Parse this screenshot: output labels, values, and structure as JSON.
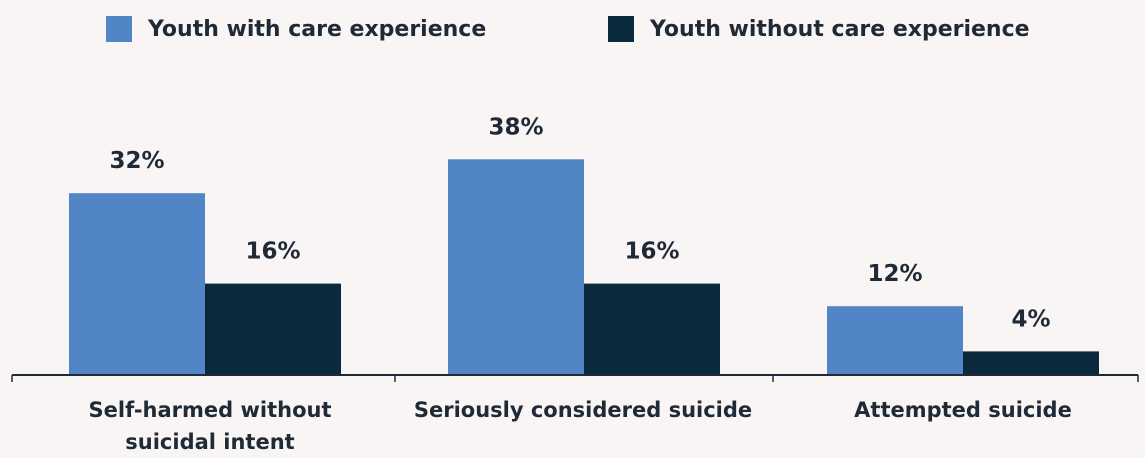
{
  "chart_data": {
    "type": "bar",
    "categories": [
      "Self-harmed without suicidal intent",
      "Seriously considered suicide",
      "Attempted suicide"
    ],
    "series": [
      {
        "name": "Youth with care experience",
        "values": [
          32,
          38,
          12
        ],
        "labels": [
          "32%",
          "38%",
          "12%"
        ],
        "color": "#5285c6"
      },
      {
        "name": "Youth without care experience",
        "values": [
          16,
          16,
          4
        ],
        "labels": [
          "16%",
          "16%",
          "4%"
        ],
        "color": "#0b293c"
      }
    ],
    "ylim": [
      0,
      40
    ],
    "legend": "top",
    "grid": false,
    "title": "",
    "xlabel": "",
    "ylabel": ""
  },
  "colors": {
    "background": "#f9f5f4",
    "text": "#1f2a36",
    "axis": "#1f2a36"
  }
}
